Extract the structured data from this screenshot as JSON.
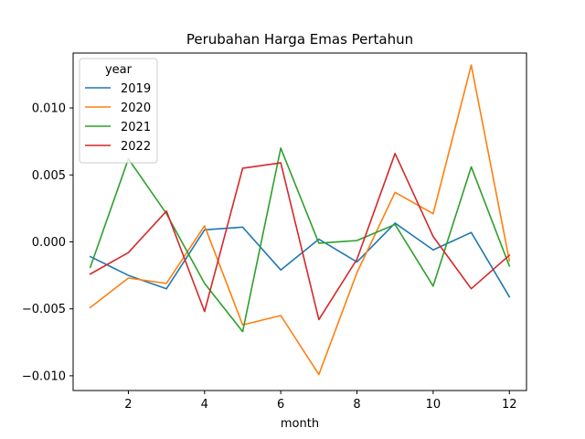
{
  "chart_data": {
    "type": "line",
    "title": "Perubahan Harga Emas Pertahun",
    "xlabel": "month",
    "ylabel": "",
    "xlim": [
      0.55,
      12.45
    ],
    "ylim": [
      -0.0111,
      0.0141
    ],
    "xticks": [
      2,
      4,
      6,
      8,
      10,
      12
    ],
    "xtick_labels": [
      "2",
      "4",
      "6",
      "8",
      "10",
      "12"
    ],
    "yticks": [
      -0.01,
      -0.005,
      0.0,
      0.005,
      0.01
    ],
    "ytick_labels": [
      "−0.010",
      "−0.005",
      "0.000",
      "0.005",
      "0.010"
    ],
    "grid": false,
    "legend": {
      "title": "year",
      "placement": "top-left"
    },
    "x": [
      1,
      2,
      3,
      4,
      5,
      6,
      7,
      8,
      9,
      10,
      11,
      12
    ],
    "series": [
      {
        "name": "2019",
        "color": "#1f77b4",
        "values": [
          -0.0011,
          -0.0025,
          -0.0035,
          0.0009,
          0.0011,
          -0.0021,
          0.0002,
          -0.0015,
          0.0014,
          -0.0006,
          0.0007,
          -0.0041
        ]
      },
      {
        "name": "2020",
        "color": "#ff7f0e",
        "values": [
          -0.0049,
          -0.0027,
          -0.0031,
          0.0012,
          -0.0062,
          -0.0055,
          -0.0099,
          -0.0023,
          0.0037,
          0.0021,
          0.0132,
          -0.0014
        ]
      },
      {
        "name": "2021",
        "color": "#2ca02c",
        "values": [
          -0.0019,
          0.0062,
          0.0021,
          -0.0031,
          -0.0067,
          0.007,
          -0.0001,
          0.0001,
          0.0013,
          -0.0033,
          0.0056,
          -0.0018
        ]
      },
      {
        "name": "2022",
        "color": "#d62728",
        "values": [
          -0.0024,
          -0.0008,
          0.0023,
          -0.0052,
          0.0055,
          0.0059,
          -0.0058,
          -0.0013,
          0.0066,
          0.0004,
          -0.0035,
          -0.001
        ]
      }
    ]
  }
}
